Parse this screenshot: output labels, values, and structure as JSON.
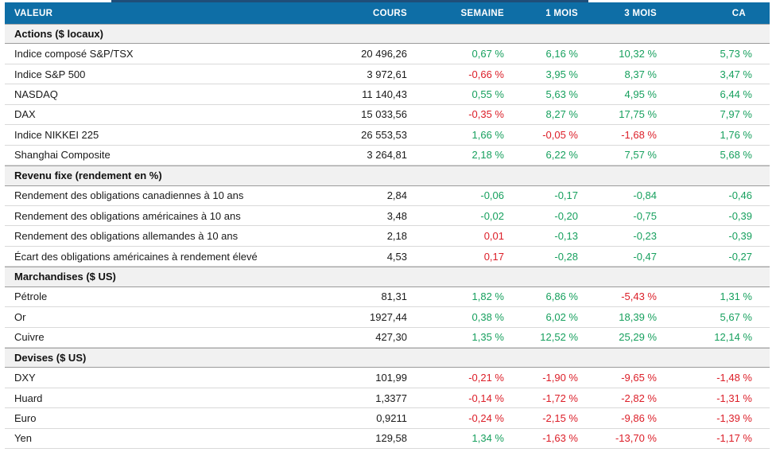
{
  "colors": {
    "header_bg": "#0E6EA6",
    "title_remnant_navy": "#1F4E79",
    "positive_green": "#17A05E",
    "negative_red": "#DC1E28",
    "section_bg": "#F1F1F1",
    "row_border": "#D9D9D9"
  },
  "chart_data": {
    "type": "table",
    "columns": [
      "VALEUR",
      "COURS",
      "SEMAINE",
      "1 MOIS",
      "3 MOIS",
      "CA"
    ],
    "sections": [
      {
        "label": "Actions ($ locaux)",
        "rows": [
          {
            "label": "Indice composé S&P/TSX",
            "values": [
              "20 496,26",
              "0,67 %",
              "6,16 %",
              "10,32 %",
              "5,73 %"
            ],
            "colors": [
              "black",
              "green",
              "green",
              "green",
              "green"
            ]
          },
          {
            "label": "Indice S&P 500",
            "values": [
              "3 972,61",
              "-0,66 %",
              "3,95 %",
              "8,37 %",
              "3,47 %"
            ],
            "colors": [
              "black",
              "red",
              "green",
              "green",
              "green"
            ]
          },
          {
            "label": "NASDAQ",
            "values": [
              "11 140,43",
              "0,55 %",
              "5,63 %",
              "4,95 %",
              "6,44 %"
            ],
            "colors": [
              "black",
              "green",
              "green",
              "green",
              "green"
            ]
          },
          {
            "label": "DAX",
            "values": [
              "15 033,56",
              "-0,35 %",
              "8,27 %",
              "17,75 %",
              "7,97 %"
            ],
            "colors": [
              "black",
              "red",
              "green",
              "green",
              "green"
            ]
          },
          {
            "label": "Indice NIKKEI 225",
            "values": [
              "26 553,53",
              "1,66 %",
              "-0,05 %",
              "-1,68 %",
              "1,76 %"
            ],
            "colors": [
              "black",
              "green",
              "red",
              "red",
              "green"
            ]
          },
          {
            "label": "Shanghai Composite",
            "values": [
              "3 264,81",
              "2,18 %",
              "6,22 %",
              "7,57 %",
              "5,68 %"
            ],
            "colors": [
              "black",
              "green",
              "green",
              "green",
              "green"
            ]
          }
        ]
      },
      {
        "label": "Revenu fixe (rendement en %)",
        "rows": [
          {
            "label": "Rendement des obligations canadiennes à 10 ans",
            "values": [
              "2,84",
              "-0,06",
              "-0,17",
              "-0,84",
              "-0,46"
            ],
            "colors": [
              "black",
              "green",
              "green",
              "green",
              "green"
            ]
          },
          {
            "label": "Rendement des obligations américaines à 10 ans",
            "values": [
              "3,48",
              "-0,02",
              "-0,20",
              "-0,75",
              "-0,39"
            ],
            "colors": [
              "black",
              "green",
              "green",
              "green",
              "green"
            ]
          },
          {
            "label": "Rendement des obligations allemandes à 10 ans",
            "values": [
              "2,18",
              "0,01",
              "-0,13",
              "-0,23",
              "-0,39"
            ],
            "colors": [
              "black",
              "red",
              "green",
              "green",
              "green"
            ]
          },
          {
            "label": "Écart des obligations américaines à rendement élevé",
            "values": [
              "4,53",
              "0,17",
              "-0,28",
              "-0,47",
              "-0,27"
            ],
            "colors": [
              "black",
              "red",
              "green",
              "green",
              "green"
            ]
          }
        ]
      },
      {
        "label": "Marchandises ($ US)",
        "rows": [
          {
            "label": "Pétrole",
            "values": [
              "81,31",
              "1,82 %",
              "6,86 %",
              "-5,43 %",
              "1,31 %"
            ],
            "colors": [
              "black",
              "green",
              "green",
              "red",
              "green"
            ]
          },
          {
            "label": "Or",
            "values": [
              "1927,44",
              "0,38 %",
              "6,02 %",
              "18,39 %",
              "5,67 %"
            ],
            "colors": [
              "black",
              "green",
              "green",
              "green",
              "green"
            ]
          },
          {
            "label": "Cuivre",
            "values": [
              "427,30",
              "1,35 %",
              "12,52 %",
              "25,29 %",
              "12,14 %"
            ],
            "colors": [
              "black",
              "green",
              "green",
              "green",
              "green"
            ]
          }
        ]
      },
      {
        "label": "Devises ($ US)",
        "rows": [
          {
            "label": "DXY",
            "values": [
              "101,99",
              "-0,21 %",
              "-1,90 %",
              "-9,65 %",
              "-1,48 %"
            ],
            "colors": [
              "black",
              "red",
              "red",
              "red",
              "red"
            ]
          },
          {
            "label": "Huard",
            "values": [
              "1,3377",
              "-0,14 %",
              "-1,72 %",
              "-2,82 %",
              "-1,31 %"
            ],
            "colors": [
              "black",
              "red",
              "red",
              "red",
              "red"
            ]
          },
          {
            "label": "Euro",
            "values": [
              "0,9211",
              "-0,24 %",
              "-2,15 %",
              "-9,86 %",
              "-1,39 %"
            ],
            "colors": [
              "black",
              "red",
              "red",
              "red",
              "red"
            ]
          },
          {
            "label": "Yen",
            "values": [
              "129,58",
              "1,34 %",
              "-1,63 %",
              "-13,70 %",
              "-1,17 %"
            ],
            "colors": [
              "black",
              "green",
              "red",
              "red",
              "red"
            ]
          }
        ]
      }
    ]
  }
}
